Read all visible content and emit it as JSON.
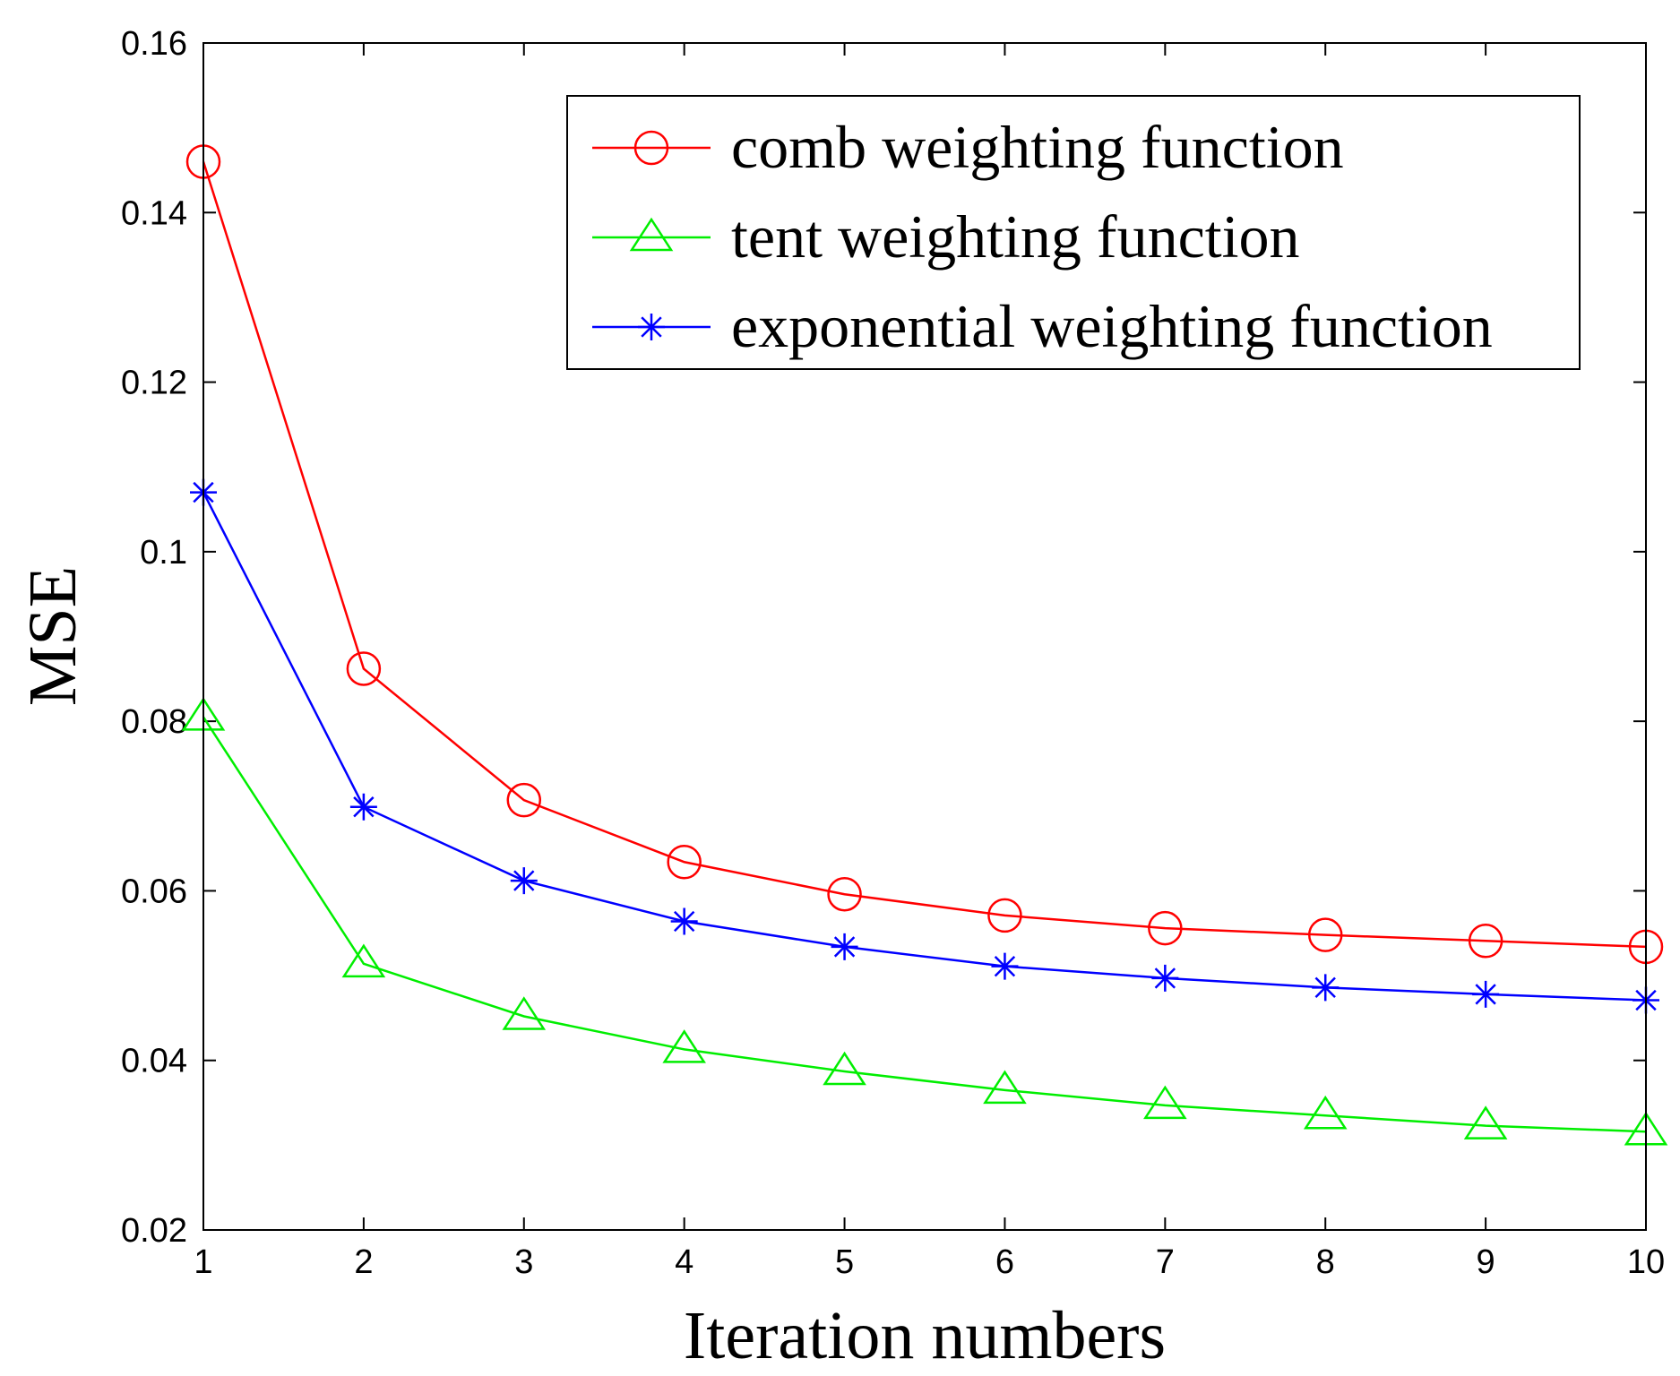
{
  "chart_data": {
    "type": "line",
    "title": "",
    "xlabel": "Iteration numbers",
    "ylabel": "MSE",
    "x": [
      1,
      2,
      3,
      4,
      5,
      6,
      7,
      8,
      9,
      10
    ],
    "xlim": [
      1,
      10
    ],
    "ylim": [
      0.02,
      0.16
    ],
    "xticks": [
      1,
      2,
      3,
      4,
      5,
      6,
      7,
      8,
      9,
      10
    ],
    "xtick_labels": [
      "1",
      "2",
      "3",
      "4",
      "5",
      "6",
      "7",
      "8",
      "9",
      "10"
    ],
    "yticks": [
      0.02,
      0.04,
      0.06,
      0.08,
      0.1,
      0.12,
      0.14,
      0.16
    ],
    "ytick_labels": [
      "0.02",
      "0.04",
      "0.06",
      "0.08",
      "0.1",
      "0.12",
      "0.14",
      "0.16"
    ],
    "grid": false,
    "legend_position": "top-right",
    "series": [
      {
        "name": "comb weighting function",
        "color": "#ff0000",
        "marker": "circle",
        "values": [
          0.146,
          0.0862,
          0.0707,
          0.0634,
          0.0596,
          0.0571,
          0.0556,
          0.0548,
          0.0541,
          0.0534
        ]
      },
      {
        "name": "tent weighting function",
        "color": "#00ee00",
        "marker": "triangle",
        "values": [
          0.0805,
          0.0514,
          0.0452,
          0.0413,
          0.0387,
          0.0365,
          0.0347,
          0.0335,
          0.0323,
          0.0316
        ]
      },
      {
        "name": "exponential weighting function",
        "color": "#0000ff",
        "marker": "asterisk",
        "values": [
          0.107,
          0.0699,
          0.0612,
          0.0564,
          0.0534,
          0.0511,
          0.0497,
          0.0486,
          0.0478,
          0.0471
        ]
      }
    ]
  }
}
